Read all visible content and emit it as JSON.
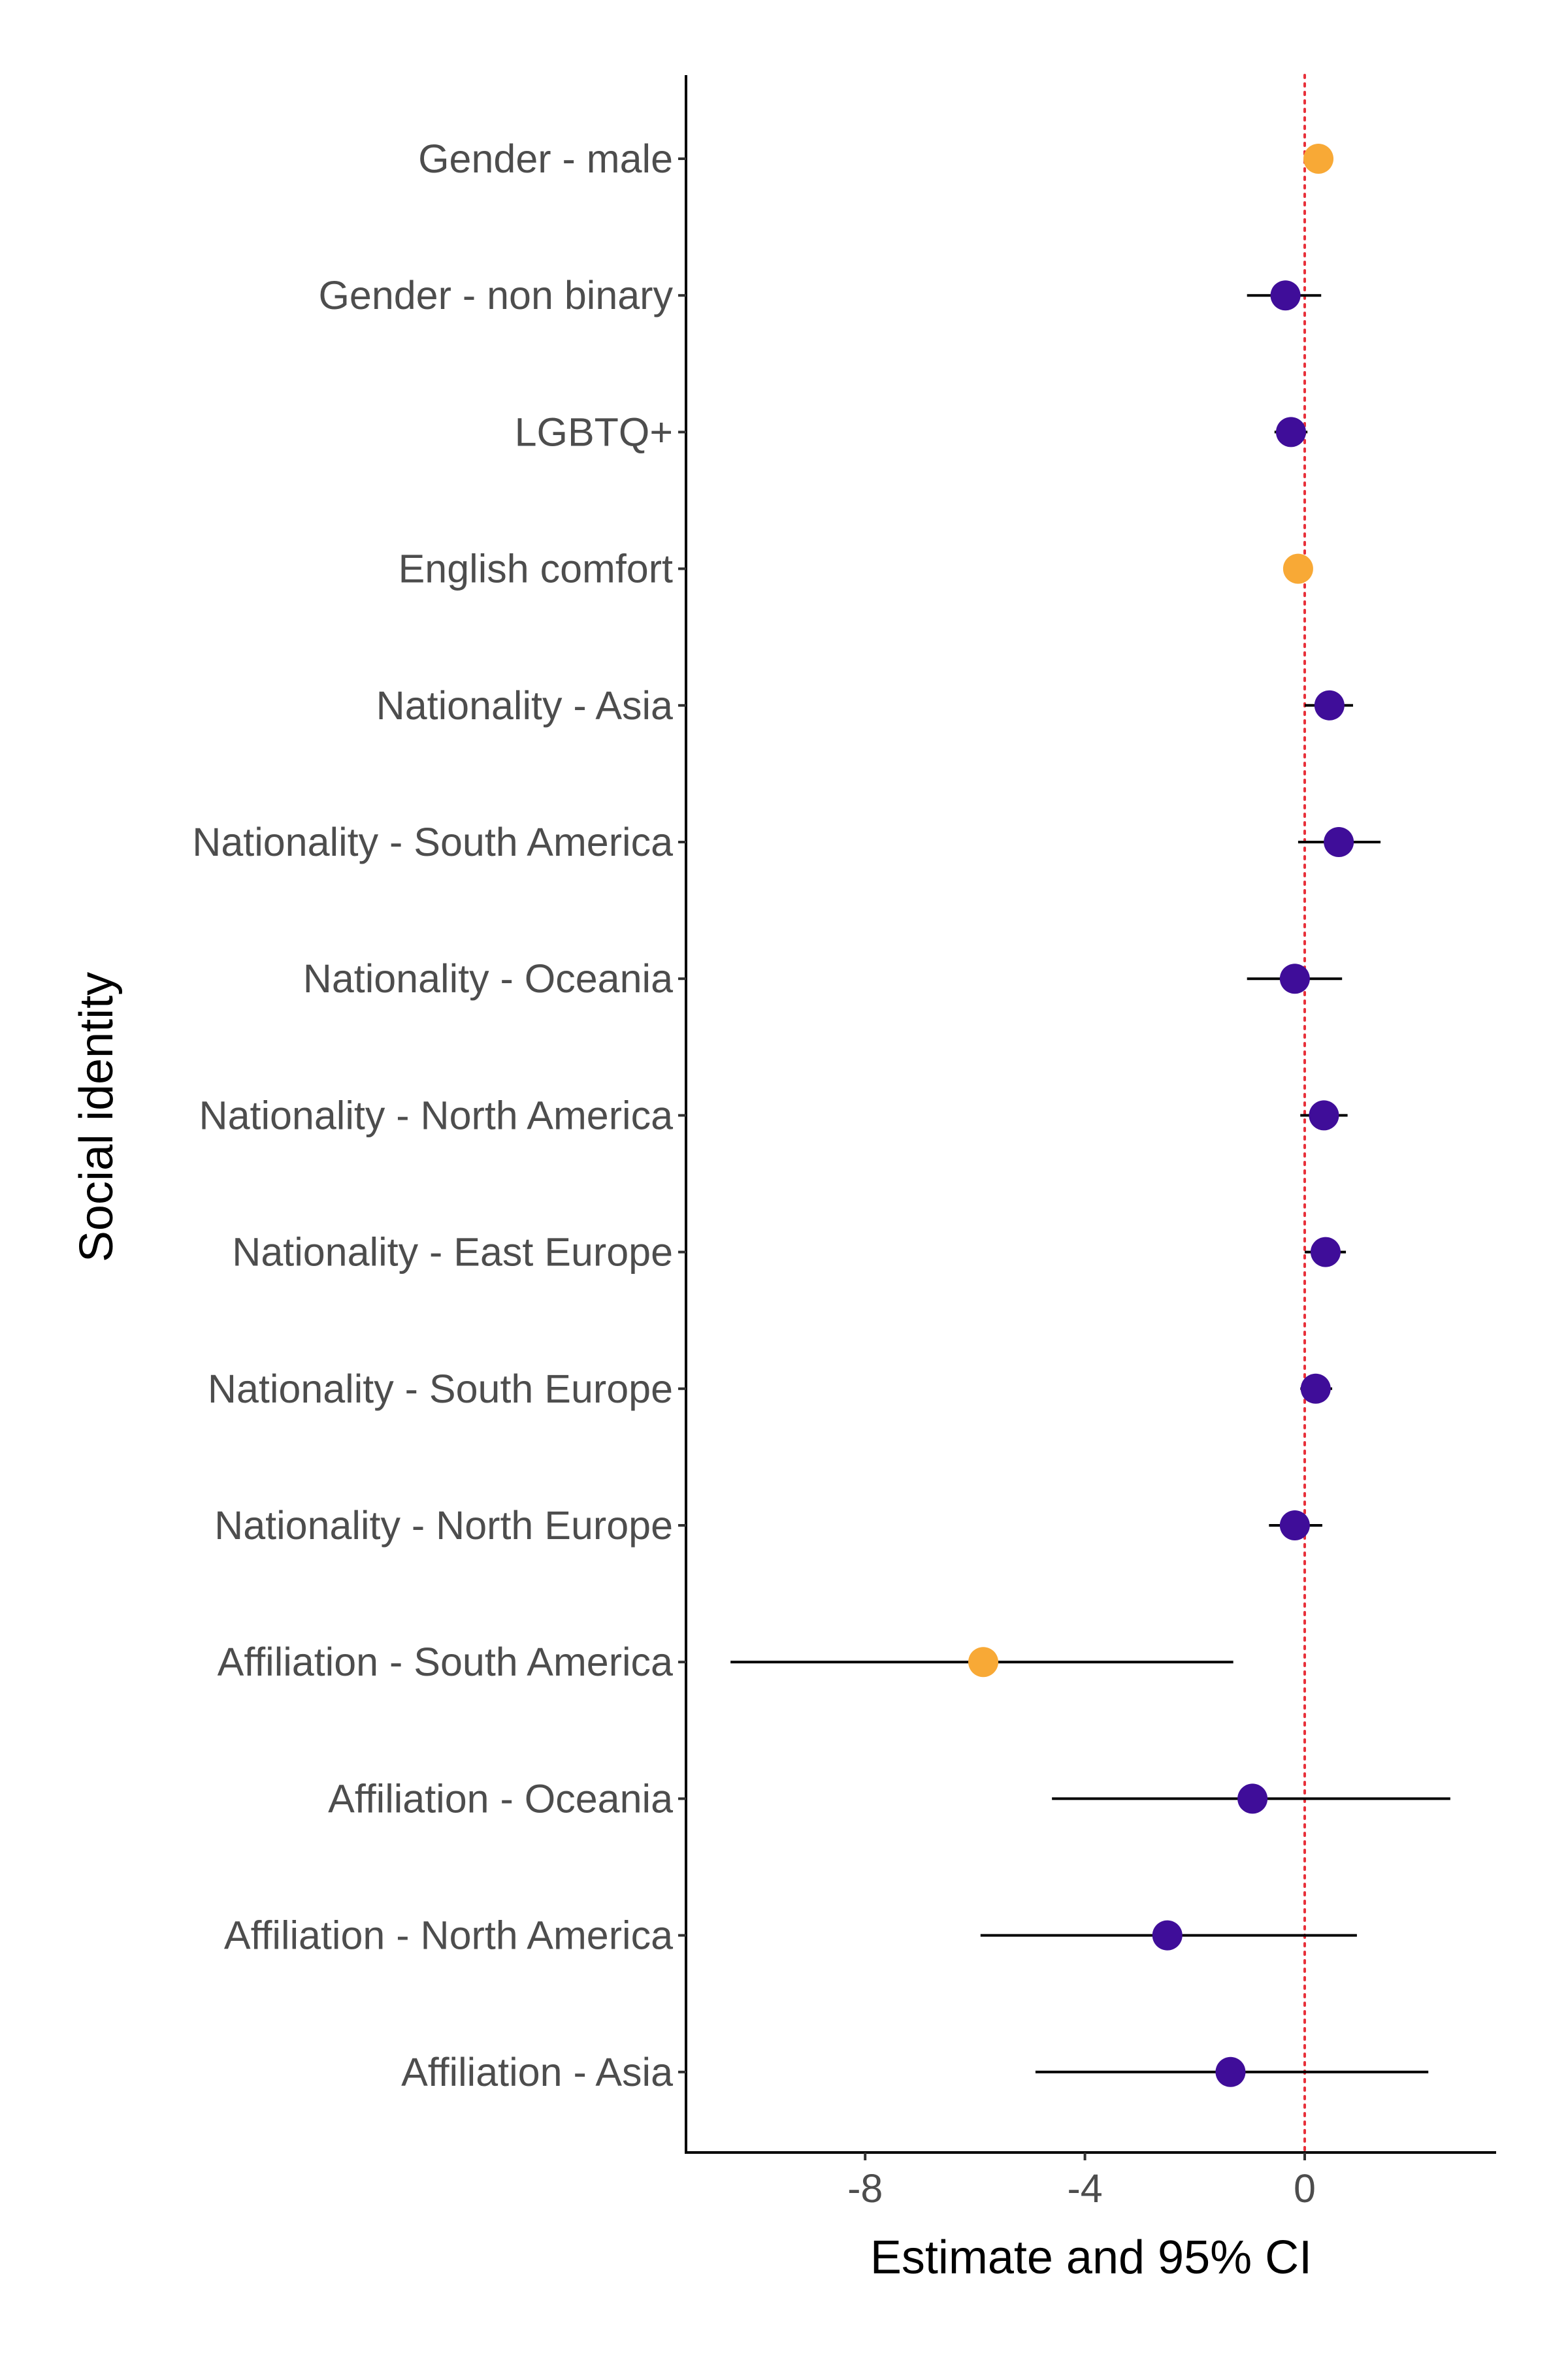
{
  "chart_data": {
    "type": "scatter",
    "subtype": "forest-plot",
    "title": "",
    "xlabel": "Estimate and 95% CI",
    "ylabel": "Social identity",
    "xlim": [
      -11.0,
      1.7
    ],
    "xticks": [
      -8,
      -4,
      0
    ],
    "xtick_labels": [
      "-8",
      "-4",
      "0"
    ],
    "reference_line": {
      "x": 0,
      "color": "#e8303a",
      "style": "dotted"
    },
    "grid": false,
    "legend": "none",
    "colors": {
      "significant": "#f8a936",
      "not_significant": "#3f0d99",
      "line": "#000000",
      "axis": "#000000"
    },
    "rows": [
      {
        "label": "Gender - male",
        "estimate": 0.25,
        "lower": 0.0,
        "upper": 0.45,
        "highlight": true
      },
      {
        "label": "Gender - non binary",
        "estimate": -0.35,
        "lower": -1.05,
        "upper": 0.3,
        "highlight": false
      },
      {
        "label": "LGBTQ+",
        "estimate": -0.25,
        "lower": -0.55,
        "upper": 0.05,
        "highlight": false
      },
      {
        "label": "English comfort",
        "estimate": -0.12,
        "lower": -0.2,
        "upper": -0.03,
        "highlight": true
      },
      {
        "label": "Nationality - Asia",
        "estimate": 0.45,
        "lower": 0.0,
        "upper": 0.88,
        "highlight": false
      },
      {
        "label": "Nationality - South America",
        "estimate": 0.62,
        "lower": -0.12,
        "upper": 1.38,
        "highlight": false
      },
      {
        "label": "Nationality - Oceania",
        "estimate": -0.18,
        "lower": -1.05,
        "upper": 0.68,
        "highlight": false
      },
      {
        "label": "Nationality - North America",
        "estimate": 0.35,
        "lower": -0.08,
        "upper": 0.78,
        "highlight": false
      },
      {
        "label": "Nationality - East Europe",
        "estimate": 0.38,
        "lower": 0.0,
        "upper": 0.75,
        "highlight": false
      },
      {
        "label": "Nationality - South Europe",
        "estimate": 0.2,
        "lower": -0.08,
        "upper": 0.5,
        "highlight": false
      },
      {
        "label": "Nationality - North Europe",
        "estimate": -0.18,
        "lower": -0.65,
        "upper": 0.32,
        "highlight": false
      },
      {
        "label": "Affiliation - South America",
        "estimate": -5.85,
        "lower": -10.45,
        "upper": -1.3,
        "highlight": true
      },
      {
        "label": "Affiliation - Oceania",
        "estimate": -0.95,
        "lower": -4.6,
        "upper": 2.65,
        "highlight": false
      },
      {
        "label": "Affiliation - North America",
        "estimate": -2.5,
        "lower": -5.9,
        "upper": 0.95,
        "highlight": false
      },
      {
        "label": "Affiliation - Asia",
        "estimate": -1.35,
        "lower": -4.9,
        "upper": 2.25,
        "highlight": false
      }
    ]
  }
}
